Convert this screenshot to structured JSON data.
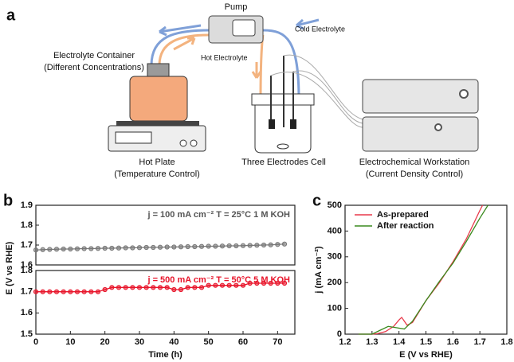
{
  "panels": [
    "a",
    "b",
    "c"
  ],
  "diagram": {
    "pump": "Pump",
    "cold": "Cold Electrolyte",
    "hot": "Hot Electrolyte",
    "container": "Electrolyte Container",
    "container_note": "(Different Concentrations)",
    "plate": "Hot Plate",
    "plate_note": "(Temperature Control)",
    "cell": "Three Electrodes Cell",
    "workstation": "Electrochemical Workstation",
    "workstation_note": "(Current Density Control)"
  },
  "chart_data": [
    {
      "type": "line",
      "ylabel": "E (V vs RHE)",
      "annotation": "j = 100 mA cm⁻²  T = 25°C  1 M KOH",
      "annotation_color": "#555555",
      "xlim": [
        0,
        75
      ],
      "ylim": [
        1.6,
        1.9
      ],
      "yticks": [
        1.6,
        1.7,
        1.8,
        1.9
      ],
      "marker": "o",
      "series": [
        {
          "name": "100 mA",
          "color": "#777777",
          "x": [
            0,
            2,
            4,
            6,
            8,
            10,
            12,
            14,
            16,
            18,
            20,
            22,
            24,
            26,
            28,
            30,
            32,
            34,
            36,
            38,
            40,
            42,
            44,
            46,
            48,
            50,
            52,
            54,
            56,
            58,
            60,
            62,
            64,
            66,
            68,
            70,
            72
          ],
          "values": [
            1.675,
            1.677,
            1.678,
            1.679,
            1.68,
            1.68,
            1.681,
            1.682,
            1.682,
            1.683,
            1.684,
            1.684,
            1.685,
            1.686,
            1.686,
            1.687,
            1.688,
            1.688,
            1.689,
            1.69,
            1.69,
            1.691,
            1.692,
            1.692,
            1.693,
            1.694,
            1.694,
            1.695,
            1.696,
            1.696,
            1.697,
            1.698,
            1.699,
            1.7,
            1.701,
            1.703,
            1.705
          ]
        }
      ]
    },
    {
      "type": "line",
      "xlabel": "Time (h)",
      "annotation": "j = 500 mA cm⁻²  T = 50°C  5 M KOH",
      "annotation_color": "#e8142a",
      "xlim": [
        0,
        75
      ],
      "xticks": [
        0,
        10,
        20,
        30,
        40,
        50,
        60,
        70
      ],
      "ylim": [
        1.5,
        1.8
      ],
      "yticks": [
        1.5,
        1.6,
        1.7,
        1.8
      ],
      "marker": "o",
      "series": [
        {
          "name": "500 mA",
          "color": "#e8142a",
          "x": [
            0,
            2,
            4,
            6,
            8,
            10,
            12,
            14,
            16,
            18,
            20,
            22,
            24,
            26,
            28,
            30,
            32,
            34,
            36,
            38,
            40,
            42,
            44,
            46,
            48,
            50,
            52,
            54,
            56,
            58,
            60,
            62,
            64,
            66,
            68,
            70,
            72
          ],
          "values": [
            1.7,
            1.7,
            1.7,
            1.7,
            1.7,
            1.7,
            1.7,
            1.7,
            1.7,
            1.7,
            1.71,
            1.72,
            1.72,
            1.72,
            1.72,
            1.72,
            1.72,
            1.72,
            1.72,
            1.72,
            1.71,
            1.71,
            1.72,
            1.72,
            1.72,
            1.73,
            1.73,
            1.73,
            1.73,
            1.73,
            1.73,
            1.74,
            1.74,
            1.74,
            1.74,
            1.74,
            1.74
          ]
        }
      ]
    },
    {
      "type": "line",
      "xlabel": "E (V vs RHE)",
      "ylabel": "j (mA cm⁻²)",
      "legend": "upper left",
      "xlim": [
        1.2,
        1.8
      ],
      "xticks": [
        1.2,
        1.3,
        1.4,
        1.5,
        1.6,
        1.7,
        1.8
      ],
      "ylim": [
        0,
        500
      ],
      "yticks": [
        0,
        100,
        200,
        300,
        400,
        500
      ],
      "series": [
        {
          "name": "As-prepared",
          "color": "#e8394a",
          "x": [
            1.25,
            1.3,
            1.32,
            1.35,
            1.38,
            1.4,
            1.41,
            1.42,
            1.43,
            1.45,
            1.5,
            1.55,
            1.6,
            1.65,
            1.7,
            1.71
          ],
          "values": [
            0,
            0,
            2,
            10,
            30,
            55,
            65,
            50,
            35,
            45,
            130,
            200,
            280,
            370,
            480,
            500
          ]
        },
        {
          "name": "After reaction",
          "color": "#3a8a1e",
          "x": [
            1.25,
            1.3,
            1.33,
            1.36,
            1.39,
            1.42,
            1.45,
            1.5,
            1.55,
            1.6,
            1.65,
            1.7,
            1.73
          ],
          "values": [
            0,
            0,
            15,
            30,
            25,
            20,
            50,
            130,
            205,
            275,
            360,
            450,
            500
          ]
        }
      ]
    }
  ]
}
